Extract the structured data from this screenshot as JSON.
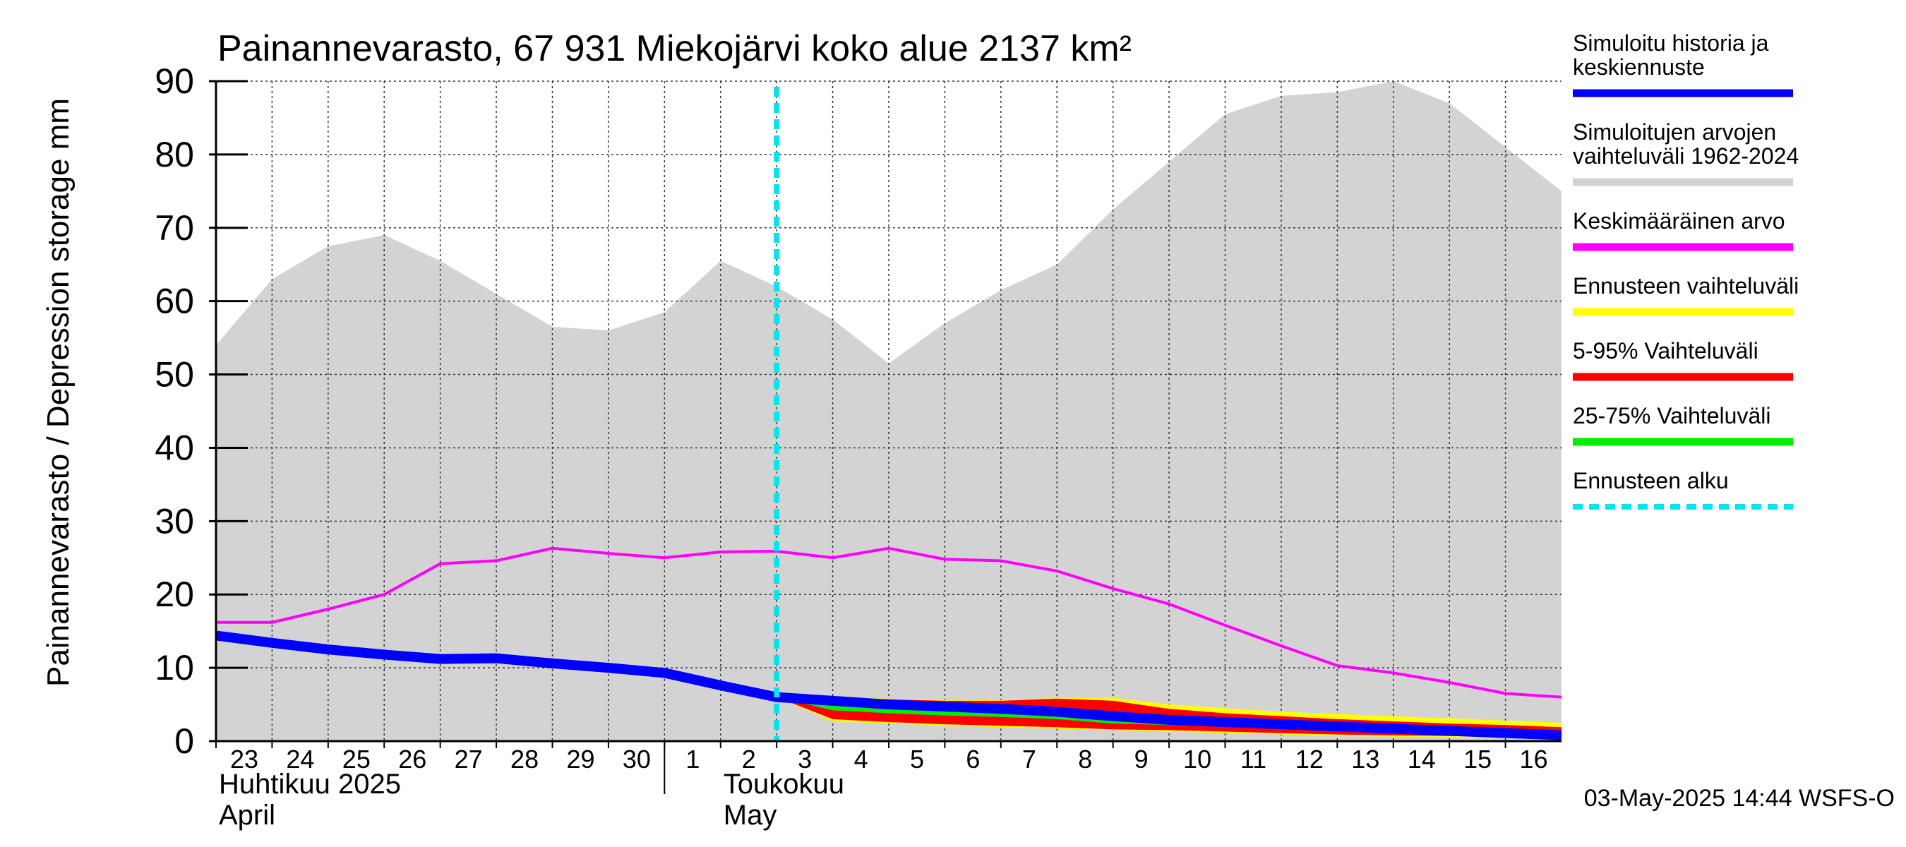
{
  "chart_data": {
    "type": "area",
    "title": "Painannevarasto, 67 931 Miekojärvi koko alue 2137 km²",
    "ylabel": "Painannevarasto / Depression storage    mm",
    "ylim": [
      0,
      90
    ],
    "yticks": [
      0,
      10,
      20,
      30,
      40,
      50,
      60,
      70,
      80,
      90
    ],
    "xlim": [
      0,
      24
    ],
    "x_tick_labels": [
      "23",
      "24",
      "25",
      "26",
      "27",
      "28",
      "29",
      "30",
      "1",
      "2",
      "3",
      "4",
      "5",
      "6",
      "7",
      "8",
      "9",
      "10",
      "11",
      "12",
      "13",
      "14",
      "15",
      "16"
    ],
    "month_labels": [
      {
        "fi": "Huhtikuu  2025",
        "en": "April",
        "x": 0
      },
      {
        "fi": "Toukokuu",
        "en": "May",
        "x": 9
      }
    ],
    "month_divider_x": 8,
    "grid": true,
    "legend_position": "right",
    "forecast_start_x": 10.0,
    "timestamp": "03-May-2025 14:44 WSFS-O",
    "legend": [
      {
        "label": "Simuloitu historia ja keskiennuste",
        "color": "#0000ff",
        "style": "solid"
      },
      {
        "label": "Simuloitujen arvojen vaihteluväli 1962-2024",
        "color": "#d3d3d3",
        "style": "solid"
      },
      {
        "label": "Keskimääräinen arvo",
        "color": "#ff00ff",
        "style": "solid"
      },
      {
        "label": "Ennusteen vaihteluväli",
        "color": "#ffff00",
        "style": "solid"
      },
      {
        "label": "5-95% Vaihteluväli",
        "color": "#ff0000",
        "style": "solid"
      },
      {
        "label": "25-75% Vaihteluväli",
        "color": "#00ee00",
        "style": "solid"
      },
      {
        "label": "Ennusteen alku",
        "color": "#00e5ee",
        "style": "dashed"
      }
    ],
    "historical_range": {
      "x": [
        0,
        1,
        2,
        3,
        4,
        5,
        6,
        7,
        8,
        9,
        10,
        11,
        12,
        13,
        14,
        15,
        16,
        17,
        18,
        19,
        20,
        21,
        22,
        23,
        24
      ],
      "upper": [
        54,
        63,
        67.5,
        69,
        65.5,
        61,
        56.5,
        56,
        58.5,
        65.5,
        62,
        57.5,
        51.5,
        57,
        61.5,
        65,
        72.5,
        79,
        85.5,
        88,
        88.5,
        90,
        87,
        81,
        75
      ],
      "lower": [
        0,
        0,
        0,
        0,
        0,
        0,
        0,
        0,
        0,
        0,
        0,
        0,
        0,
        0,
        0,
        0,
        0,
        0,
        0,
        0,
        0,
        0,
        0,
        0,
        0
      ]
    },
    "mean": {
      "x": [
        0,
        1,
        2,
        3,
        4,
        5,
        6,
        7,
        8,
        9,
        10,
        11,
        12,
        13,
        14,
        15,
        16,
        17,
        18,
        19,
        20,
        21,
        22,
        23,
        24
      ],
      "y": [
        16.2,
        16.2,
        18,
        20,
        24.2,
        24.6,
        26.3,
        25.6,
        25,
        25.8,
        25.9,
        25,
        26.3,
        24.8,
        24.6,
        23.2,
        20.8,
        18.7,
        15.8,
        13,
        10.3,
        9.3,
        8,
        6.5,
        6
      ]
    },
    "simulated": {
      "x": [
        0,
        1,
        2,
        3,
        4,
        5,
        6,
        7,
        8,
        9,
        10,
        11,
        12,
        13,
        14,
        15,
        16,
        17,
        18,
        19,
        20,
        21,
        22,
        23,
        24
      ],
      "y": [
        14.4,
        13.4,
        12.5,
        11.8,
        11.2,
        11.3,
        10.6,
        10,
        9.3,
        7.6,
        6,
        5.5,
        5,
        4.7,
        4.4,
        4,
        3.4,
        2.9,
        2.6,
        2.3,
        2,
        1.7,
        1.4,
        1.1,
        0.8
      ]
    },
    "forecast_x": [
      10,
      11,
      12,
      13,
      14,
      15,
      16,
      17,
      18,
      19,
      20,
      21,
      22,
      23,
      24
    ],
    "forecast_range": {
      "upper": [
        6.3,
        6,
        5.8,
        5.6,
        5.6,
        5.9,
        5.9,
        5,
        4.5,
        4,
        3.7,
        3.4,
        3.1,
        2.8,
        2.5
      ],
      "lower": [
        6,
        2.7,
        2.4,
        2.1,
        1.9,
        1.7,
        1.5,
        1.3,
        1.1,
        0.9,
        0.7,
        0.6,
        0.5,
        0.4,
        0.3
      ]
    },
    "p5_95": {
      "upper": [
        6.2,
        5.9,
        5.7,
        5.5,
        5.5,
        5.8,
        5.5,
        4.4,
        3.8,
        3.4,
        3,
        2.7,
        2.4,
        2.2,
        1.9
      ],
      "lower": [
        6,
        3,
        2.6,
        2.3,
        2.1,
        1.9,
        1.6,
        1.5,
        1.3,
        1.1,
        0.9,
        0.8,
        0.7,
        0.6,
        0.5
      ]
    },
    "p25_75": {
      "upper": [
        6.1,
        5.2,
        4.8,
        4.6,
        4.5,
        4.5,
        4.1,
        3.4,
        3,
        2.7,
        2.4,
        2.1,
        1.8,
        1.5,
        1.2
      ],
      "lower": [
        6,
        4.2,
        3.8,
        3.5,
        3.3,
        3,
        2.4,
        2.2,
        2,
        1.8,
        1.6,
        1.3,
        1.1,
        0.9,
        0.6
      ]
    }
  }
}
